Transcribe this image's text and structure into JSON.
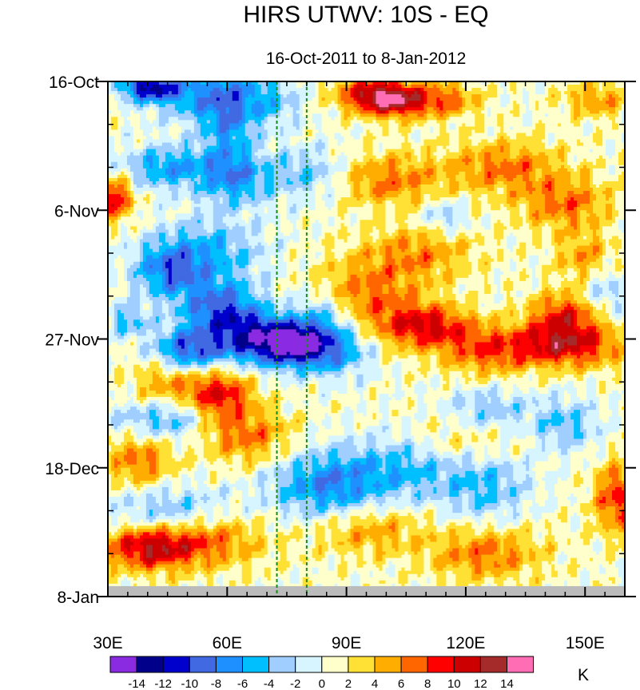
{
  "chart_data": {
    "type": "heatmap",
    "title": "HIRS UTWV: 10S - EQ",
    "subtitle": "16-Oct-2011 to 8-Jan-2012",
    "xlabel": "",
    "ylabel": "",
    "x_range": [
      30,
      160
    ],
    "x_ticks": [
      {
        "value": 30,
        "label": "30E"
      },
      {
        "value": 60,
        "label": "60E"
      },
      {
        "value": 90,
        "label": "90E"
      },
      {
        "value": 120,
        "label": "120E"
      },
      {
        "value": 150,
        "label": "150E"
      }
    ],
    "y_range_days": [
      0,
      84
    ],
    "y_direction": "time increases downward",
    "y_ticks": [
      {
        "value": 0,
        "label": "16-Oct"
      },
      {
        "value": 21,
        "label": "6-Nov"
      },
      {
        "value": 42,
        "label": "27-Nov"
      },
      {
        "value": 63,
        "label": "18-Dec"
      },
      {
        "value": 84,
        "label": "8-Jan"
      }
    ],
    "reference_lines_lon": [
      72.5,
      80
    ],
    "missing_data_days": [
      82.3,
      84
    ],
    "levels": [
      -14,
      -12,
      -10,
      -8,
      -6,
      -4,
      -2,
      0,
      2,
      4,
      6,
      8,
      10,
      12,
      14
    ],
    "level_labels": [
      "-14",
      "-12",
      "-10",
      "-8",
      "-6",
      "-4",
      "-2",
      "0",
      "2",
      "4",
      "6",
      "8",
      "10",
      "12",
      "14"
    ],
    "colors": [
      "#8a2be2",
      "#00008b",
      "#0000cd",
      "#4169e1",
      "#1e90ff",
      "#00bfff",
      "#a0cfff",
      "#d6f5ff",
      "#ffffcc",
      "#ffe135",
      "#ffad00",
      "#ff6600",
      "#ff0000",
      "#cc0000",
      "#a52a2a",
      "#ff6eb4"
    ],
    "colorbar_unit": "K",
    "features": [
      {
        "lon": 40,
        "day": 1,
        "amp": -11,
        "slon": 5,
        "sday": 1.5
      },
      {
        "lon": 50,
        "day": 2,
        "amp": -6,
        "slon": 8,
        "sday": 3
      },
      {
        "lon": 60,
        "day": 6,
        "amp": -7,
        "slon": 5,
        "sday": 6
      },
      {
        "lon": 70,
        "day": 3,
        "amp": -5,
        "slon": 6,
        "sday": 3
      },
      {
        "lon": 45,
        "day": 14,
        "amp": -7,
        "slon": 8,
        "sday": 2.5
      },
      {
        "lon": 62,
        "day": 16,
        "amp": -6,
        "slon": 6,
        "sday": 3
      },
      {
        "lon": 80,
        "day": 15,
        "amp": -5,
        "slon": 8,
        "sday": 3
      },
      {
        "lon": 55,
        "day": 28,
        "amp": -6,
        "slon": 10,
        "sday": 4
      },
      {
        "lon": 45,
        "day": 31,
        "amp": -7,
        "slon": 6,
        "sday": 3
      },
      {
        "lon": 58,
        "day": 37,
        "amp": -9,
        "slon": 7,
        "sday": 3
      },
      {
        "lon": 68,
        "day": 42,
        "amp": -12,
        "slon": 8,
        "sday": 3
      },
      {
        "lon": 78,
        "day": 43,
        "amp": -11,
        "slon": 6,
        "sday": 2.5
      },
      {
        "lon": 50,
        "day": 44,
        "amp": -10,
        "slon": 6,
        "sday": 2.5
      },
      {
        "lon": 88,
        "day": 44,
        "amp": -6,
        "slon": 6,
        "sday": 3
      },
      {
        "lon": 84,
        "day": 38,
        "amp": -5,
        "slon": 5,
        "sday": 3
      },
      {
        "lon": 35,
        "day": 39,
        "amp": -5,
        "slon": 4,
        "sday": 2
      },
      {
        "lon": 40,
        "day": 55,
        "amp": -4,
        "slon": 8,
        "sday": 2
      },
      {
        "lon": 85,
        "day": 66,
        "amp": -8,
        "slon": 10,
        "sday": 4
      },
      {
        "lon": 105,
        "day": 63,
        "amp": -5,
        "slon": 10,
        "sday": 4
      },
      {
        "lon": 125,
        "day": 54,
        "amp": -5,
        "slon": 8,
        "sday": 3
      },
      {
        "lon": 145,
        "day": 56,
        "amp": -5,
        "slon": 6,
        "sday": 3
      },
      {
        "lon": 125,
        "day": 66,
        "amp": -5,
        "slon": 8,
        "sday": 4
      },
      {
        "lon": 155,
        "day": 34,
        "amp": -4,
        "slon": 5,
        "sday": 3
      },
      {
        "lon": 115,
        "day": 22,
        "amp": -4,
        "slon": 4,
        "sday": 2
      },
      {
        "lon": 45,
        "day": 70,
        "amp": -5,
        "slon": 10,
        "sday": 3
      },
      {
        "lon": 48,
        "day": 55,
        "amp": -3,
        "slon": 6,
        "sday": 3
      },
      {
        "lon": 95,
        "day": 2,
        "amp": 7,
        "slon": 6,
        "sday": 2
      },
      {
        "lon": 102,
        "day": 3,
        "amp": 11,
        "slon": 6,
        "sday": 2
      },
      {
        "lon": 115,
        "day": 3,
        "amp": 6,
        "slon": 6,
        "sday": 2
      },
      {
        "lon": 153,
        "day": 3,
        "amp": 5,
        "slon": 6,
        "sday": 2
      },
      {
        "lon": 32,
        "day": 19,
        "amp": 9,
        "slon": 3,
        "sday": 2.5
      },
      {
        "lon": 100,
        "day": 16,
        "amp": 6,
        "slon": 10,
        "sday": 3
      },
      {
        "lon": 130,
        "day": 14,
        "amp": 6,
        "slon": 10,
        "sday": 3
      },
      {
        "lon": 145,
        "day": 20,
        "amp": 6,
        "slon": 8,
        "sday": 3
      },
      {
        "lon": 108,
        "day": 28,
        "amp": 5,
        "slon": 10,
        "sday": 3
      },
      {
        "lon": 95,
        "day": 35,
        "amp": 6,
        "slon": 10,
        "sday": 4
      },
      {
        "lon": 110,
        "day": 40,
        "amp": 9,
        "slon": 8,
        "sday": 2.5
      },
      {
        "lon": 145,
        "day": 38,
        "amp": 8,
        "slon": 6,
        "sday": 2.5
      },
      {
        "lon": 145,
        "day": 43,
        "amp": 10,
        "slon": 10,
        "sday": 2.5
      },
      {
        "lon": 125,
        "day": 44,
        "amp": 6,
        "slon": 8,
        "sday": 3
      },
      {
        "lon": 150,
        "day": 29,
        "amp": 5,
        "slon": 5,
        "sday": 3
      },
      {
        "lon": 58,
        "day": 51,
        "amp": 9,
        "slon": 6,
        "sday": 3
      },
      {
        "lon": 45,
        "day": 49,
        "amp": 5,
        "slon": 6,
        "sday": 3
      },
      {
        "lon": 65,
        "day": 58,
        "amp": 6,
        "slon": 8,
        "sday": 3
      },
      {
        "lon": 38,
        "day": 62,
        "amp": 6,
        "slon": 6,
        "sday": 3
      },
      {
        "lon": 40,
        "day": 76,
        "amp": 10,
        "slon": 8,
        "sday": 2.5
      },
      {
        "lon": 55,
        "day": 75,
        "amp": 6,
        "slon": 10,
        "sday": 3
      },
      {
        "lon": 125,
        "day": 77,
        "amp": 6,
        "slon": 10,
        "sday": 3
      },
      {
        "lon": 95,
        "day": 73,
        "amp": 5,
        "slon": 10,
        "sday": 3
      },
      {
        "lon": 158,
        "day": 68,
        "amp": 8,
        "slon": 4,
        "sday": 4
      },
      {
        "lon": 120,
        "day": 58,
        "amp": 4,
        "slon": 10,
        "sday": 3
      }
    ]
  }
}
